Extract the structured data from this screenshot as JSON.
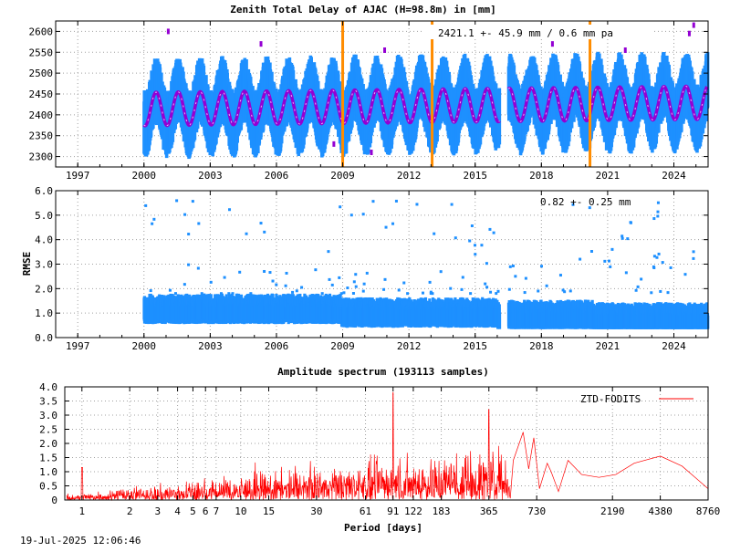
{
  "colors": {
    "ztd": "#1e90ff",
    "model": "#9400d3",
    "break": "#ff8c00",
    "spectrum": "#ff0000",
    "frame": "#000000",
    "grid": "#a0a0a0"
  },
  "chart_data": [
    {
      "type": "scatter",
      "title": "Zenith Total Delay of AJAC (H=98.8m) in [mm]",
      "annotation": "2421.1 +-  45.9 mm /  0.6 mm pa",
      "xlim": [
        1996.0,
        2025.55
      ],
      "ylim": [
        2275,
        2625
      ],
      "x_ticks": [
        1997,
        2000,
        2003,
        2006,
        2009,
        2012,
        2015,
        2018,
        2021,
        2024
      ],
      "y_ticks": [
        2300,
        2350,
        2400,
        2450,
        2500,
        2550,
        2600
      ],
      "data_start": 2000.0,
      "data_gap": [
        2016.1,
        2016.5
      ],
      "mean": 2421.1,
      "std": 45.9,
      "trend_mm_per_year": 0.6,
      "seasonal_amplitude": 75,
      "model_amplitude": 40,
      "break_epochs": [
        2009.0,
        2013.05,
        2020.2
      ],
      "grid": true
    },
    {
      "type": "scatter",
      "ylabel": "RMSE",
      "annotation": "0.82 +-  0.25 mm",
      "xlim": [
        1996.0,
        2025.55
      ],
      "ylim": [
        0.0,
        6.0
      ],
      "x_ticks": [
        1997,
        2000,
        2003,
        2006,
        2009,
        2012,
        2015,
        2018,
        2021,
        2024
      ],
      "y_ticks": [
        "0.0",
        "1.0",
        "2.0",
        "3.0",
        "4.0",
        "5.0",
        "6.0"
      ],
      "mean": 0.82,
      "std": 0.25,
      "grid": true
    },
    {
      "type": "line",
      "title": "Amplitude spectrum (193113 samples)",
      "xlabel": "Period [days]",
      "scale": "log-x",
      "xlim": [
        0.78,
        8760
      ],
      "ylim": [
        0.0,
        4.0
      ],
      "x_ticks": [
        1,
        2,
        3,
        4,
        5,
        6,
        7,
        10,
        15,
        30,
        61,
        91,
        122,
        183,
        365,
        730,
        2190,
        4380,
        8760
      ],
      "y_ticks": [
        "0",
        "0.5",
        "1.0",
        "1.5",
        "2.0",
        "2.5",
        "3.0",
        "3.5",
        "4.0"
      ],
      "legend": "ZTD-FODITS",
      "legend_position": "top-right",
      "peaks": [
        {
          "period": 1.0,
          "amplitude": 1.15
        },
        {
          "period": 91,
          "amplitude": 3.8
        },
        {
          "period": 365,
          "amplitude": 3.2
        },
        {
          "period": 4380,
          "amplitude": 1.55
        },
        {
          "period": 8760,
          "amplitude": 0.4
        }
      ],
      "grid": true
    }
  ],
  "footer": {
    "timestamp": "19-Jul-2025 12:06:46"
  }
}
